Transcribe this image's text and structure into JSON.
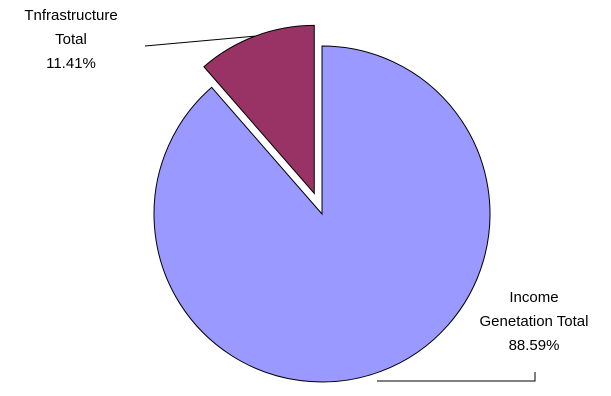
{
  "chart_data": {
    "type": "pie",
    "title": "",
    "slices": [
      {
        "label": [
          "Income",
          "Genetation Total"
        ],
        "percent_label": "88.59%",
        "value": 88.59,
        "color": "#9999ff",
        "exploded": false
      },
      {
        "label": [
          "Tnfrastructure",
          "Total"
        ],
        "percent_label": "11.41%",
        "value": 11.41,
        "color": "#993366",
        "exploded": true
      }
    ],
    "start_angle": "12 o'clock, clockwise",
    "legend": "none"
  }
}
